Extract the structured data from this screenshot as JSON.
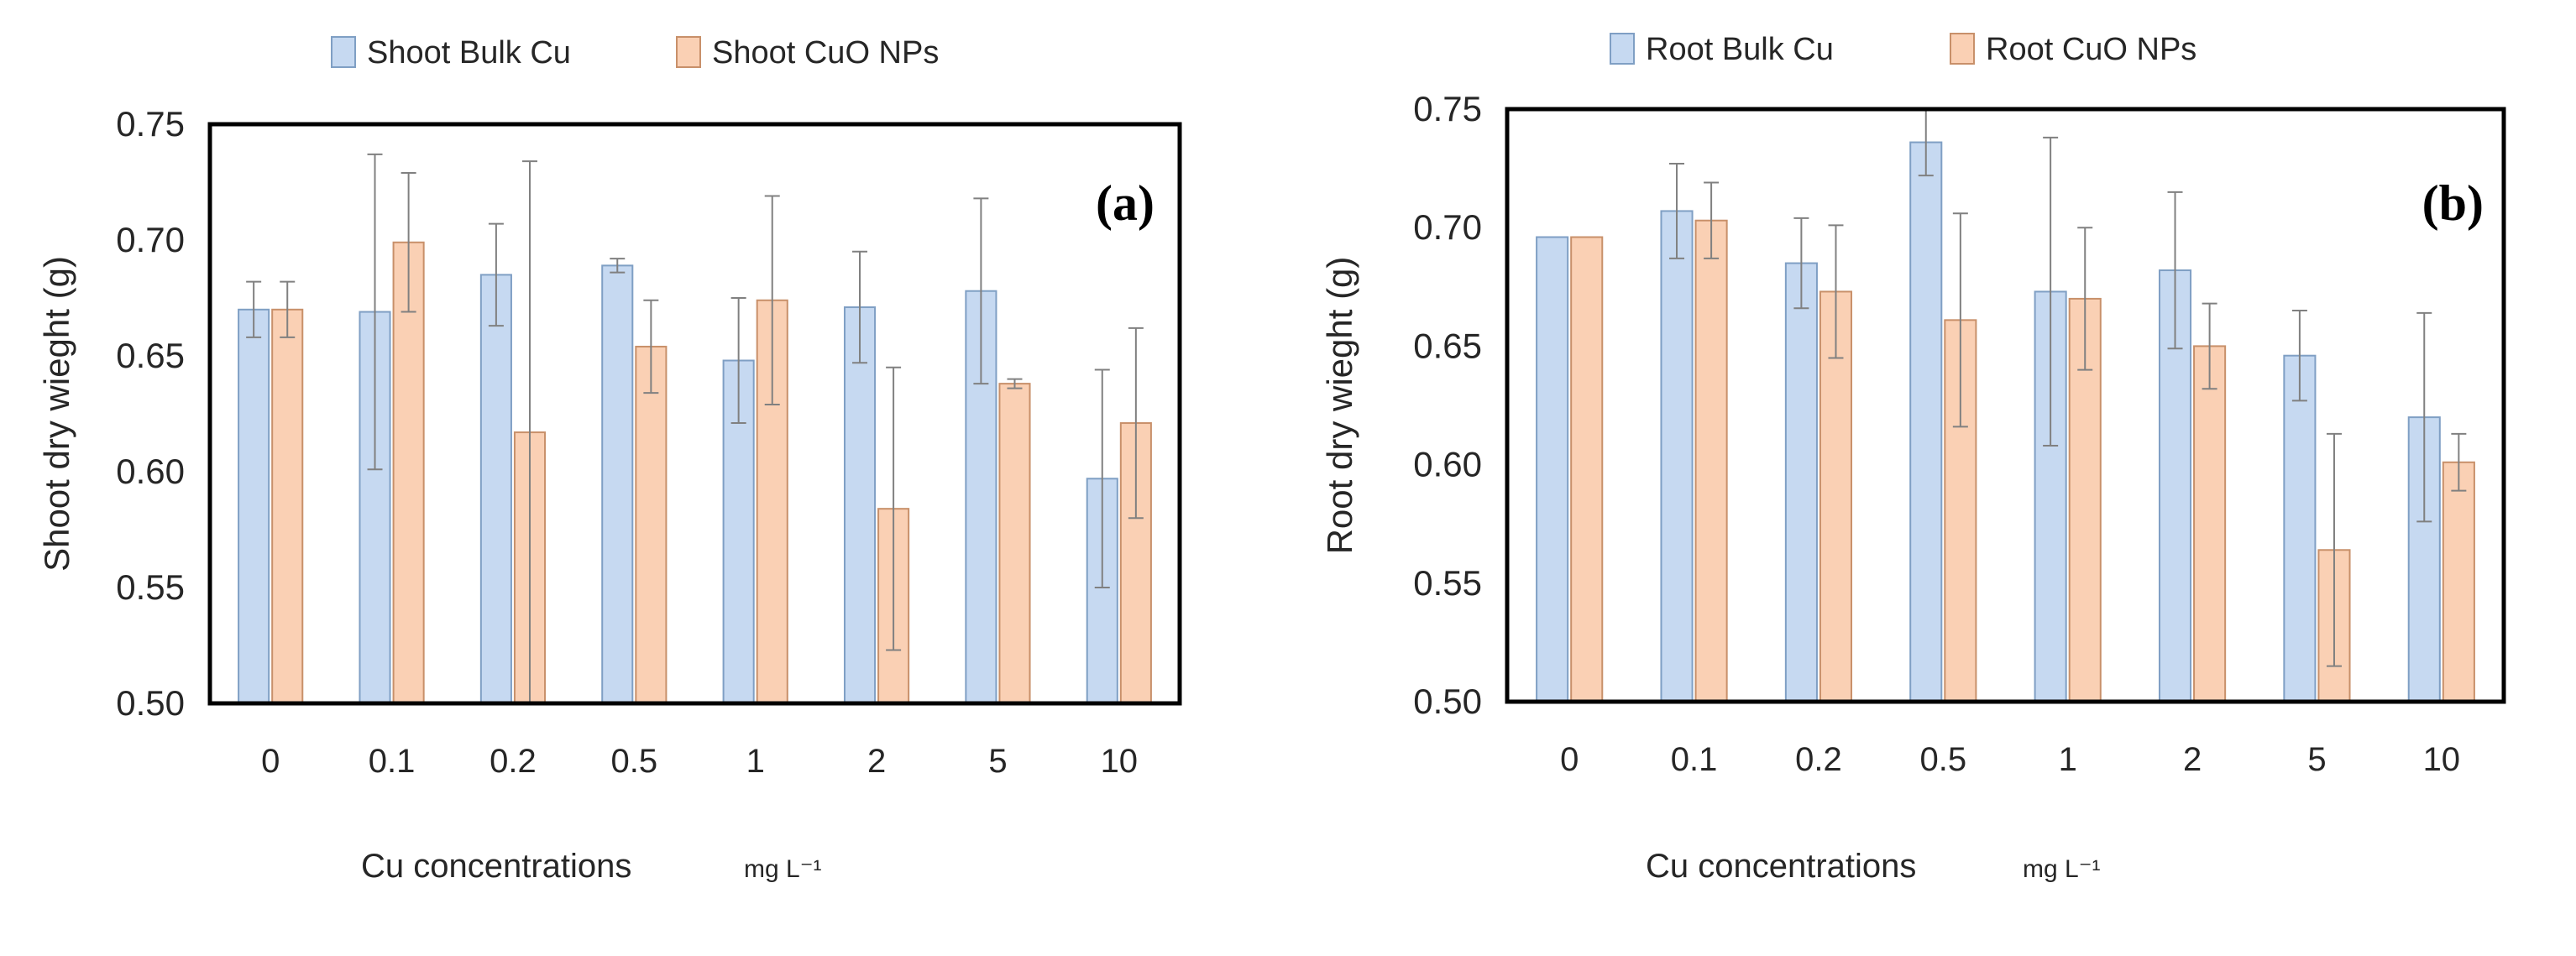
{
  "colors": {
    "bulk_fill": "#c6d9f1",
    "bulk_stroke": "#7f9fc4",
    "nps_fill": "#fad0b4",
    "nps_stroke": "#c8906a",
    "frame": "#000000",
    "baseline": "#7f7f7f",
    "error_bar": "#808080",
    "text": "#262626"
  },
  "chart_data": [
    {
      "type": "bar",
      "panel": "(a)",
      "xlabel": "Cu concentrations",
      "xlabel_unit": "mg L⁻¹",
      "ylabel": "Shoot dry wieght (g)",
      "ylim": [
        0.5,
        0.75
      ],
      "yticks": [
        0.5,
        0.55,
        0.6,
        0.65,
        0.7,
        0.75
      ],
      "ytick_labels": [
        "0.50",
        "0.55",
        "0.60",
        "0.65",
        "0.70",
        "0.75"
      ],
      "categories": [
        "0",
        "0.1",
        "0.2",
        "0.5",
        "1",
        "2",
        "5",
        "10"
      ],
      "grid": false,
      "legend": "top-center",
      "series": [
        {
          "name": "Shoot Bulk Cu",
          "values": [
            0.67,
            0.669,
            0.685,
            0.689,
            0.648,
            0.671,
            0.678,
            0.597
          ],
          "errors": [
            0.012,
            0.068,
            0.022,
            0.003,
            0.027,
            0.024,
            0.04,
            0.047
          ]
        },
        {
          "name": "Shoot CuO NPs",
          "values": [
            0.67,
            0.699,
            0.617,
            0.654,
            0.674,
            0.584,
            0.638,
            0.621
          ],
          "errors": [
            0.012,
            0.03,
            0.117,
            0.02,
            0.045,
            0.061,
            0.002,
            0.041
          ]
        }
      ]
    },
    {
      "type": "bar",
      "panel": "(b)",
      "xlabel": "Cu concentrations",
      "xlabel_unit": "mg L⁻¹",
      "ylabel": "Root dry wieght (g)",
      "ylim": [
        0.5,
        0.75
      ],
      "yticks": [
        0.5,
        0.55,
        0.6,
        0.65,
        0.7,
        0.75
      ],
      "ytick_labels": [
        "0.50",
        "0.55",
        "0.60",
        "0.65",
        "0.70",
        "0.75"
      ],
      "categories": [
        "0",
        "0.1",
        "0.2",
        "0.5",
        "1",
        "2",
        "5",
        "10"
      ],
      "grid": false,
      "legend": "top-center",
      "series": [
        {
          "name": "Root Bulk Cu",
          "values": [
            0.696,
            0.707,
            0.685,
            0.736,
            0.673,
            0.682,
            0.646,
            0.62
          ],
          "errors": [
            0.0,
            0.02,
            0.019,
            0.014,
            0.065,
            0.033,
            0.019,
            0.044
          ]
        },
        {
          "name": "Root CuO NPs",
          "values": [
            0.696,
            0.703,
            0.673,
            0.661,
            0.67,
            0.65,
            0.564,
            0.601
          ],
          "errors": [
            0.0,
            0.016,
            0.028,
            0.045,
            0.03,
            0.018,
            0.049,
            0.012
          ]
        }
      ]
    }
  ]
}
